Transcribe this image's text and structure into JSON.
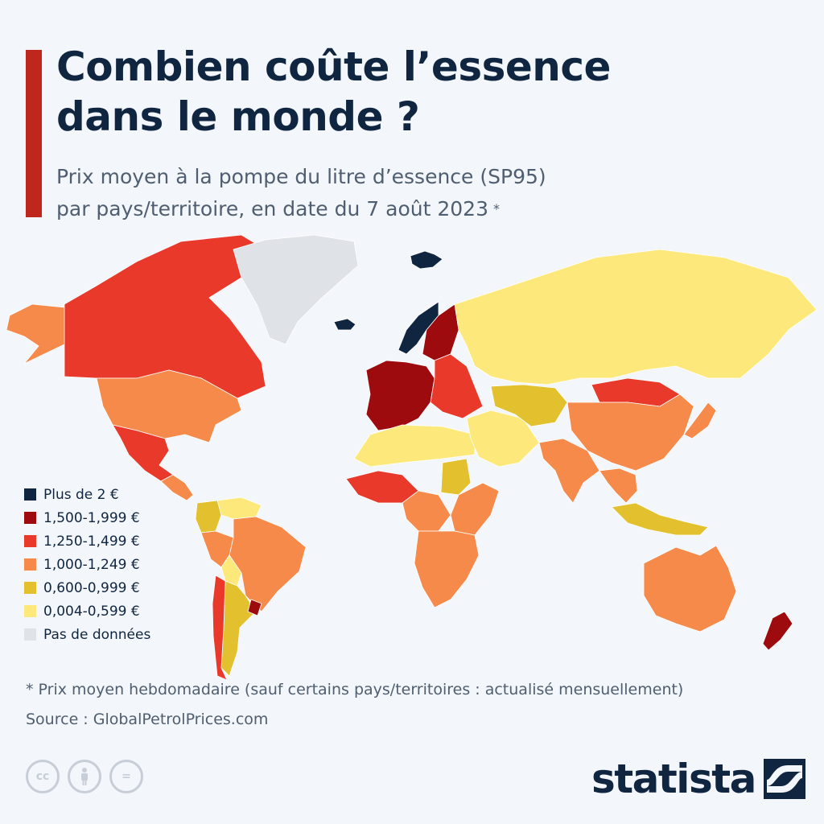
{
  "header": {
    "title": "Combien coûte l’essence\ndans le monde ?",
    "subtitle": "Prix moyen à la pompe du litre d’essence (SP95)\npar pays/territoire, en date du 7 août 2023",
    "subtitle_marker": "*"
  },
  "legend": {
    "items": [
      {
        "label": "Plus de 2 €",
        "color": "#0f2540"
      },
      {
        "label": "1,500-1,999 €",
        "color": "#9e0b0f"
      },
      {
        "label": "1,250-1,499 €",
        "color": "#e8392a"
      },
      {
        "label": "1,000-1,249 €",
        "color": "#f58a4b"
      },
      {
        "label": "0,600-0,999 €",
        "color": "#e3c12e"
      },
      {
        "label": "0,004-0,599 €",
        "color": "#fde97b"
      },
      {
        "label": "Pas de données",
        "color": "#dfe2e6"
      }
    ]
  },
  "map": {
    "regions": [
      {
        "name": "Alaska",
        "color": "#f58a4b"
      },
      {
        "name": "Canada",
        "color": "#e8392a"
      },
      {
        "name": "Greenland",
        "color": "#dfe2e6"
      },
      {
        "name": "Iceland",
        "color": "#0f2540"
      },
      {
        "name": "Svalbard",
        "color": "#0f2540"
      },
      {
        "name": "United States",
        "color": "#f58a4b"
      },
      {
        "name": "Mexico",
        "color": "#e8392a"
      },
      {
        "name": "Central America",
        "color": "#f58a4b"
      },
      {
        "name": "Venezuela",
        "color": "#fde97b"
      },
      {
        "name": "Colombia",
        "color": "#e3c12e"
      },
      {
        "name": "Brazil",
        "color": "#f58a4b"
      },
      {
        "name": "Peru",
        "color": "#f58a4b"
      },
      {
        "name": "Bolivia",
        "color": "#fde97b"
      },
      {
        "name": "Argentina",
        "color": "#e3c12e"
      },
      {
        "name": "Chile",
        "color": "#e8392a"
      },
      {
        "name": "Uruguay",
        "color": "#9e0b0f"
      },
      {
        "name": "Norway",
        "color": "#0f2540"
      },
      {
        "name": "Sweden & Finland",
        "color": "#9e0b0f"
      },
      {
        "name": "Western Europe",
        "color": "#9e0b0f"
      },
      {
        "name": "Eastern Europe",
        "color": "#e8392a"
      },
      {
        "name": "Russia",
        "color": "#fde97b"
      },
      {
        "name": "North Africa",
        "color": "#fde97b"
      },
      {
        "name": "West Africa",
        "color": "#e8392a"
      },
      {
        "name": "Central Africa",
        "color": "#f58a4b"
      },
      {
        "name": "Sudan",
        "color": "#e3c12e"
      },
      {
        "name": "East Africa",
        "color": "#f58a4b"
      },
      {
        "name": "Southern Africa",
        "color": "#f58a4b"
      },
      {
        "name": "Middle East",
        "color": "#fde97b"
      },
      {
        "name": "Central Asia",
        "color": "#e3c12e"
      },
      {
        "name": "Mongolia",
        "color": "#e8392a"
      },
      {
        "name": "China",
        "color": "#f58a4b"
      },
      {
        "name": "India",
        "color": "#f58a4b"
      },
      {
        "name": "Southeast Asia",
        "color": "#f58a4b"
      },
      {
        "name": "Japan",
        "color": "#f58a4b"
      },
      {
        "name": "Indonesia",
        "color": "#e3c12e"
      },
      {
        "name": "Australia",
        "color": "#f58a4b"
      },
      {
        "name": "New Zealand",
        "color": "#9e0b0f"
      }
    ]
  },
  "footnote": "* Prix moyen hebdomadaire (sauf certains pays/territoires : actualisé mensuellement)",
  "source": "Source : GlobalPetrolPrices.com",
  "brand": {
    "name": "statista",
    "color": "#0f2540"
  },
  "license": {
    "icons": [
      "cc-icon",
      "by-icon",
      "nd-icon"
    ],
    "cc": "cc",
    "nd": "="
  }
}
